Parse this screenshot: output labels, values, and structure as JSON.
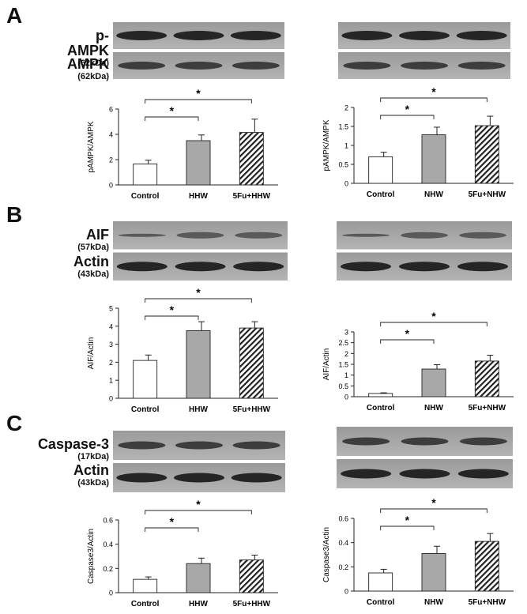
{
  "panels": [
    {
      "letter": "A",
      "top_label": "p-AMPK",
      "top_kda": "(62kDa)",
      "bottom_label": "AMPK",
      "bottom_kda": "(62kDa)",
      "top_band": "strong",
      "bottom_band": "medium"
    },
    {
      "letter": "B",
      "top_label": "AIF",
      "top_kda": "(57kDa)",
      "bottom_label": "Actin",
      "bottom_kda": "(43kDa)",
      "top_band": "weak",
      "bottom_band": "strong"
    },
    {
      "letter": "C",
      "top_label": "Caspase-3",
      "top_kda": "(17kDa)",
      "bottom_label": "Actin",
      "bottom_kda": "(43kDa)",
      "top_band": "medium",
      "bottom_band": "strong"
    }
  ],
  "significance_marker": "*",
  "chart_data": [
    {
      "type": "bar",
      "ylabel": "pAMPK/AMPK",
      "ylim": [
        0,
        6
      ],
      "yticks": [
        0,
        2,
        4,
        6
      ],
      "categories": [
        "Control",
        "HHW",
        "5Fu+HHW"
      ],
      "values": [
        1.65,
        3.5,
        4.15
      ],
      "errors": [
        0.3,
        0.45,
        1.05
      ],
      "comparisons": [
        {
          "from": 0,
          "to": 1,
          "label": "*"
        },
        {
          "from": 0,
          "to": 2,
          "label": "*"
        }
      ]
    },
    {
      "type": "bar",
      "ylabel": "pAMPK/AMPK",
      "ylim": [
        0,
        2
      ],
      "yticks": [
        0,
        0.5,
        1,
        1.5,
        2
      ],
      "categories": [
        "Control",
        "NHW",
        "5Fu+NHW"
      ],
      "values": [
        0.7,
        1.28,
        1.52
      ],
      "errors": [
        0.12,
        0.2,
        0.25
      ],
      "comparisons": [
        {
          "from": 0,
          "to": 1,
          "label": "*"
        },
        {
          "from": 0,
          "to": 2,
          "label": "*"
        }
      ]
    },
    {
      "type": "bar",
      "ylabel": "AIF/Actin",
      "ylim": [
        0,
        5
      ],
      "yticks": [
        0,
        1,
        2,
        3,
        4,
        5
      ],
      "categories": [
        "Control",
        "HHW",
        "5Fu+HHW"
      ],
      "values": [
        2.1,
        3.75,
        3.9
      ],
      "errors": [
        0.3,
        0.5,
        0.35
      ],
      "comparisons": [
        {
          "from": 0,
          "to": 1,
          "label": "*"
        },
        {
          "from": 0,
          "to": 2,
          "label": "*"
        }
      ]
    },
    {
      "type": "bar",
      "ylabel": "AIF/Actin",
      "ylim": [
        0,
        3
      ],
      "yticks": [
        0,
        0.5,
        1,
        1.5,
        2,
        2.5,
        3
      ],
      "categories": [
        "Control",
        "NHW",
        "5Fu+NHW"
      ],
      "values": [
        0.15,
        1.28,
        1.65
      ],
      "errors": [
        0.03,
        0.2,
        0.27
      ],
      "comparisons": [
        {
          "from": 0,
          "to": 1,
          "label": "*"
        },
        {
          "from": 0,
          "to": 2,
          "label": "*"
        }
      ]
    },
    {
      "type": "bar",
      "ylabel": "Caspase3/Actin",
      "ylim": [
        0,
        0.6
      ],
      "yticks": [
        0,
        0.2,
        0.4,
        0.6
      ],
      "categories": [
        "Control",
        "HHW",
        "5Fu+HHW"
      ],
      "values": [
        0.11,
        0.24,
        0.27
      ],
      "errors": [
        0.02,
        0.045,
        0.04
      ],
      "comparisons": [
        {
          "from": 0,
          "to": 1,
          "label": "*"
        },
        {
          "from": 0,
          "to": 2,
          "label": "*"
        }
      ]
    },
    {
      "type": "bar",
      "ylabel": "Caspase3/Actin",
      "ylim": [
        0,
        0.6
      ],
      "yticks": [
        0,
        0.2,
        0.4,
        0.6
      ],
      "categories": [
        "Control",
        "NHW",
        "5Fu+NHW"
      ],
      "values": [
        0.15,
        0.31,
        0.41
      ],
      "errors": [
        0.03,
        0.06,
        0.065
      ],
      "comparisons": [
        {
          "from": 0,
          "to": 1,
          "label": "*"
        },
        {
          "from": 0,
          "to": 2,
          "label": "*"
        }
      ]
    }
  ]
}
